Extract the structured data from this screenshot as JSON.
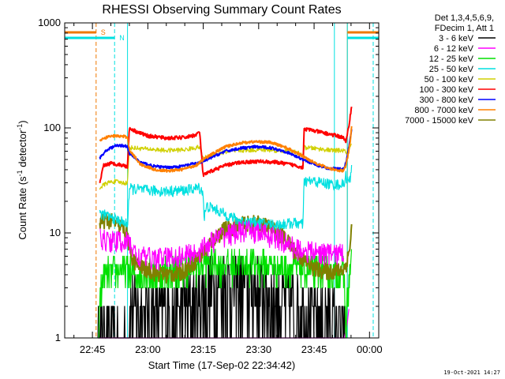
{
  "chart_data": {
    "type": "line",
    "title": "RHESSI Observing Summary Count Rates",
    "xlabel": "Start Time (17-Sep-02 22:34:42)",
    "ylabel_parts": [
      "Count Rate (s",
      "-1",
      " detector",
      "-1",
      ")"
    ],
    "yscale": "log",
    "ylim": [
      1,
      1000
    ],
    "xlim_minutes": [
      -7.5,
      77.5
    ],
    "x_tick_labels": [
      "22:45",
      "23:00",
      "23:15",
      "23:30",
      "23:45",
      "00:00"
    ],
    "x_ticks_minutes": [
      0,
      15,
      30,
      45,
      60,
      75
    ],
    "y_tick_labels": [
      "1",
      "10",
      "100",
      "1000"
    ],
    "y_ticks": [
      1,
      10,
      100,
      1000
    ],
    "legend_header": [
      "Det 1,3,4,5,6,9,",
      "FDecim 1, Att 1"
    ],
    "legend_placement": "outside-right",
    "flags": [
      {
        "label": "S",
        "color": "#f07800",
        "x0": -7.5,
        "x1": 1.0
      },
      {
        "label": "N",
        "color": "#00e0e0",
        "x0": -7.5,
        "x1": 6.0
      }
    ],
    "flag_bars_right": [
      {
        "color": "#f07800",
        "x0": 69.0,
        "x1": 77.5
      },
      {
        "color": "#00e0e0",
        "x0": 69.0,
        "x1": 77.5
      }
    ],
    "vertical_markers": [
      {
        "color": "#f07800",
        "x": 1.0,
        "style": "dashed"
      },
      {
        "color": "#00e0e0",
        "x": 6.0,
        "style": "dashed"
      },
      {
        "color": "#00e0e0",
        "x": 9.5,
        "style": "solid"
      },
      {
        "color": "#00e0e0",
        "x": 65.5,
        "style": "solid"
      },
      {
        "color": "#f07800",
        "x": 69.0,
        "style": "solid"
      },
      {
        "color": "#00e0e0",
        "x": 69.0,
        "style": "solid"
      },
      {
        "color": "#00e0e0",
        "x": 76.0,
        "style": "dashed"
      }
    ],
    "series": [
      {
        "name": "3 - 6 keV",
        "color": "#000000",
        "data": [
          [
            1.5,
            1.0
          ],
          [
            9.5,
            1.0
          ],
          [
            10.5,
            2.0
          ],
          [
            14,
            1.7
          ],
          [
            20,
            1.8
          ],
          [
            25,
            2.0
          ],
          [
            29,
            2.4
          ],
          [
            31,
            3.0
          ],
          [
            35,
            3.3
          ],
          [
            40,
            3.2
          ],
          [
            45,
            3.0
          ],
          [
            50,
            2.4
          ],
          [
            56,
            2.0
          ],
          [
            59,
            1.8
          ],
          [
            65,
            1.5
          ],
          [
            67,
            1.2
          ],
          [
            68.5,
            1.0
          ]
        ]
      },
      {
        "name": "6 - 12 keV",
        "color": "#ff00ff",
        "data": [
          [
            1.5,
            1.0
          ],
          [
            68.2,
            1.0
          ],
          [
            69.0,
            1.4
          ],
          [
            69.5,
            2.0
          ]
        ]
      },
      {
        "name": "12 - 25 keV",
        "color": "#00e000",
        "data": [
          [
            1.5,
            1.0
          ],
          [
            1.8,
            1.6
          ],
          [
            2.2,
            2.6
          ],
          [
            3,
            4.0
          ],
          [
            7,
            4.4
          ],
          [
            9.5,
            4.3
          ],
          [
            10.5,
            4.1
          ],
          [
            15,
            4.2
          ],
          [
            20,
            4.4
          ],
          [
            25,
            4.6
          ],
          [
            29,
            4.9
          ],
          [
            31,
            5.2
          ],
          [
            35,
            5.1
          ],
          [
            40,
            5.2
          ],
          [
            45,
            5.1
          ],
          [
            50,
            4.9
          ],
          [
            56,
            4.6
          ],
          [
            59,
            4.4
          ],
          [
            65,
            4.3
          ],
          [
            68,
            4.3
          ],
          [
            68.6,
            1.5
          ],
          [
            69.2,
            2.8
          ],
          [
            69.8,
            4.5
          ],
          [
            70.2,
            5.2
          ]
        ]
      },
      {
        "name": "25 - 50 keV",
        "color": "#00e0e0",
        "data": [
          [
            2,
            15.5
          ],
          [
            4,
            14.5
          ],
          [
            6,
            13.6
          ],
          [
            8,
            12.8
          ],
          [
            9.5,
            12.0
          ],
          [
            10,
            26.5
          ],
          [
            15,
            25.5
          ],
          [
            20,
            25.0
          ],
          [
            25,
            25.5
          ],
          [
            29,
            27
          ],
          [
            30,
            24
          ],
          [
            30.2,
            14
          ],
          [
            31,
            18
          ],
          [
            33,
            17
          ],
          [
            36,
            15
          ],
          [
            40,
            13
          ],
          [
            45,
            12.5
          ],
          [
            50,
            12
          ],
          [
            55,
            12.5
          ],
          [
            57,
            12
          ],
          [
            57.3,
            31
          ],
          [
            60,
            31
          ],
          [
            65,
            29
          ],
          [
            68,
            29
          ],
          [
            68.6,
            35
          ],
          [
            69.2,
            30.5
          ],
          [
            69.8,
            32
          ],
          [
            70.2,
            45
          ]
        ]
      },
      {
        "name": "50 - 100 keV",
        "color": "#d0d000",
        "data": [
          [
            2,
            27
          ],
          [
            4,
            30
          ],
          [
            6,
            31
          ],
          [
            8,
            30
          ],
          [
            9.5,
            30
          ],
          [
            10,
            65
          ],
          [
            15,
            63
          ],
          [
            20,
            61
          ],
          [
            25,
            62
          ],
          [
            29,
            66
          ],
          [
            30,
            51
          ],
          [
            31,
            53
          ],
          [
            33,
            56
          ],
          [
            36,
            59
          ],
          [
            40,
            61
          ],
          [
            45,
            62
          ],
          [
            50,
            61
          ],
          [
            55,
            59
          ],
          [
            57,
            55
          ],
          [
            57.3,
            65
          ],
          [
            60,
            64
          ],
          [
            65,
            61
          ],
          [
            68,
            61
          ],
          [
            68.6,
            58
          ],
          [
            69.2,
            62
          ],
          [
            69.8,
            65
          ],
          [
            70.2,
            70
          ]
        ]
      },
      {
        "name": "100 - 300 keV",
        "color": "#ff0000",
        "data": [
          [
            2,
            29
          ],
          [
            3,
            44
          ],
          [
            5,
            46
          ],
          [
            7,
            45
          ],
          [
            9.5,
            43
          ],
          [
            10,
            100
          ],
          [
            12,
            92
          ],
          [
            15,
            84
          ],
          [
            20,
            80
          ],
          [
            25,
            81
          ],
          [
            28,
            86
          ],
          [
            29,
            92
          ],
          [
            30,
            35
          ],
          [
            31,
            37
          ],
          [
            33,
            40
          ],
          [
            36,
            44
          ],
          [
            40,
            47
          ],
          [
            45,
            48
          ],
          [
            50,
            47
          ],
          [
            55,
            44
          ],
          [
            57,
            42
          ],
          [
            57.3,
            98
          ],
          [
            60,
            94
          ],
          [
            65,
            86
          ],
          [
            68,
            81
          ],
          [
            68.6,
            72
          ],
          [
            69.2,
            95
          ],
          [
            69.8,
            130
          ],
          [
            70.2,
            170
          ]
        ]
      },
      {
        "name": "300 - 800 keV",
        "color": "#0000ff",
        "data": [
          [
            2,
            52
          ],
          [
            4,
            62
          ],
          [
            6,
            67
          ],
          [
            8,
            68
          ],
          [
            9.5,
            67
          ],
          [
            10,
            57
          ],
          [
            13,
            47
          ],
          [
            17,
            43
          ],
          [
            20,
            42
          ],
          [
            24,
            43
          ],
          [
            28,
            46
          ],
          [
            30,
            48
          ],
          [
            33,
            54
          ],
          [
            36,
            60
          ],
          [
            40,
            64
          ],
          [
            44,
            66
          ],
          [
            48,
            65
          ],
          [
            52,
            60
          ],
          [
            56,
            52
          ],
          [
            60,
            45
          ],
          [
            64,
            41
          ],
          [
            68,
            41
          ],
          [
            68.6,
            47
          ],
          [
            69.2,
            60
          ],
          [
            69.8,
            80
          ],
          [
            70.2,
            100
          ]
        ]
      },
      {
        "name": "800 - 7000 keV",
        "color": "#ff8000",
        "data": [
          [
            2,
            75
          ],
          [
            4,
            82
          ],
          [
            6,
            84
          ],
          [
            8,
            83
          ],
          [
            9.5,
            82
          ],
          [
            10,
            62
          ],
          [
            13,
            45
          ],
          [
            17,
            40
          ],
          [
            20,
            39
          ],
          [
            24,
            40
          ],
          [
            28,
            44
          ],
          [
            30,
            50
          ],
          [
            33,
            58
          ],
          [
            36,
            66
          ],
          [
            40,
            72
          ],
          [
            44,
            74
          ],
          [
            48,
            73
          ],
          [
            52,
            66
          ],
          [
            56,
            56
          ],
          [
            60,
            47
          ],
          [
            64,
            41
          ],
          [
            68,
            39
          ],
          [
            68.6,
            44
          ],
          [
            69.2,
            55
          ],
          [
            69.8,
            75
          ],
          [
            70.2,
            110
          ]
        ]
      },
      {
        "name": "7000 - 15000 keV",
        "color": "#808000",
        "data": [
          [
            2,
            13
          ],
          [
            4,
            13.5
          ],
          [
            6,
            12.5
          ],
          [
            8,
            11.5
          ],
          [
            9.5,
            10
          ],
          [
            10,
            7.2
          ],
          [
            11,
            5.5
          ],
          [
            13,
            4.8
          ],
          [
            17,
            4.2
          ],
          [
            20,
            4.0
          ],
          [
            24,
            4.2
          ],
          [
            28,
            5.5
          ],
          [
            30,
            6.5
          ],
          [
            33,
            9.0
          ],
          [
            36,
            11
          ],
          [
            40,
            12
          ],
          [
            44,
            12.5
          ],
          [
            48,
            11.5
          ],
          [
            52,
            9.0
          ],
          [
            56,
            6.0
          ],
          [
            60,
            4.6
          ],
          [
            64,
            4.3
          ],
          [
            68,
            4.5
          ],
          [
            68.6,
            5
          ],
          [
            69.2,
            6
          ],
          [
            69.8,
            8
          ],
          [
            70.2,
            12
          ]
        ]
      }
    ]
  },
  "timestamp": "19-Oct-2021 14:27"
}
